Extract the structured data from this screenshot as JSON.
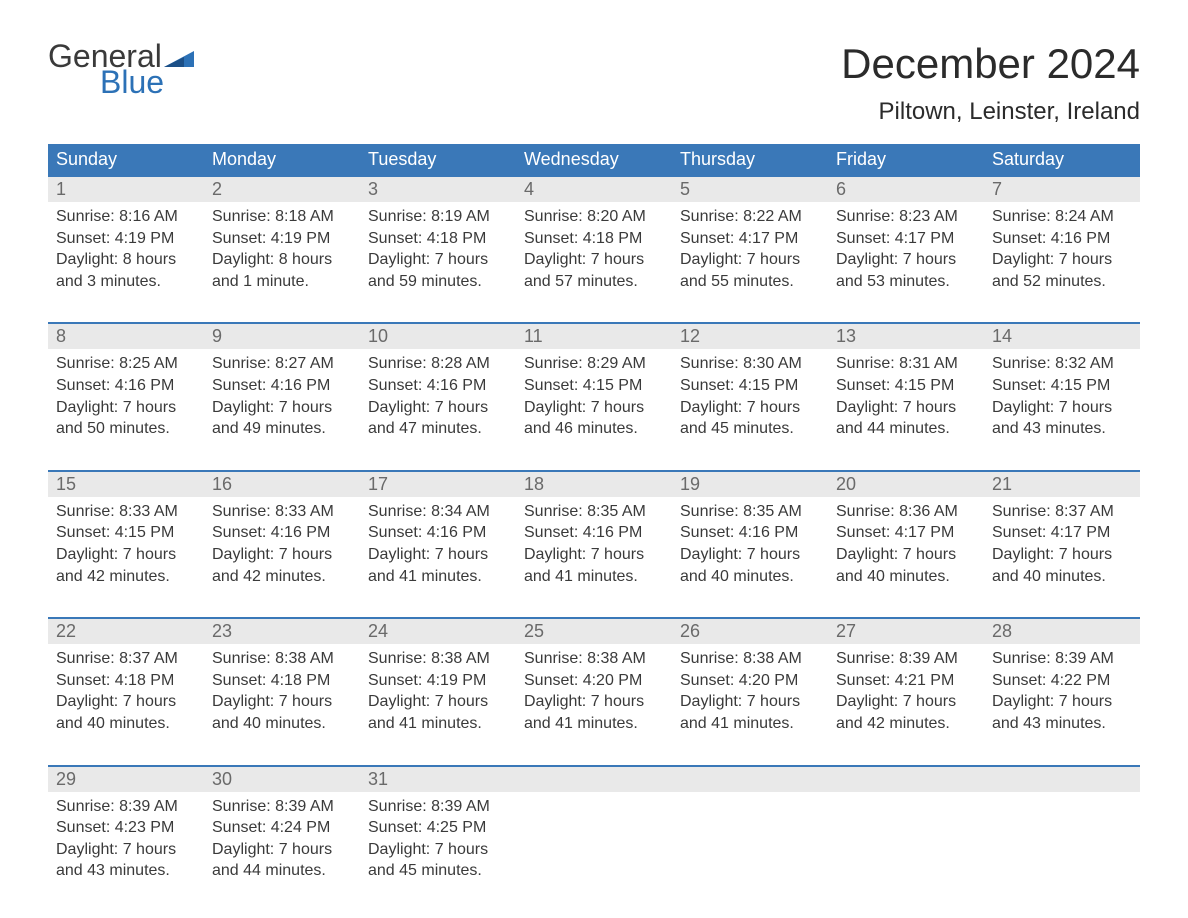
{
  "logo": {
    "line1": "General",
    "line2": "Blue",
    "brand_color": "#2c71b6"
  },
  "title": "December 2024",
  "location": "Piltown, Leinster, Ireland",
  "colors": {
    "header_bg": "#3a78b8",
    "header_text": "#ffffff",
    "week_border": "#3a78b8",
    "daynum_bg": "#e9e9e9",
    "daynum_text": "#6a6a6a",
    "body_text": "#3a3a3a",
    "page_bg": "#ffffff"
  },
  "typography": {
    "title_fontsize": 42,
    "location_fontsize": 24,
    "dow_fontsize": 18,
    "daynum_fontsize": 18,
    "body_fontsize": 16
  },
  "days_of_week": [
    "Sunday",
    "Monday",
    "Tuesday",
    "Wednesday",
    "Thursday",
    "Friday",
    "Saturday"
  ],
  "weeks": [
    [
      {
        "n": "1",
        "sunrise": "Sunrise: 8:16 AM",
        "sunset": "Sunset: 4:19 PM",
        "d1": "Daylight: 8 hours",
        "d2": "and 3 minutes."
      },
      {
        "n": "2",
        "sunrise": "Sunrise: 8:18 AM",
        "sunset": "Sunset: 4:19 PM",
        "d1": "Daylight: 8 hours",
        "d2": "and 1 minute."
      },
      {
        "n": "3",
        "sunrise": "Sunrise: 8:19 AM",
        "sunset": "Sunset: 4:18 PM",
        "d1": "Daylight: 7 hours",
        "d2": "and 59 minutes."
      },
      {
        "n": "4",
        "sunrise": "Sunrise: 8:20 AM",
        "sunset": "Sunset: 4:18 PM",
        "d1": "Daylight: 7 hours",
        "d2": "and 57 minutes."
      },
      {
        "n": "5",
        "sunrise": "Sunrise: 8:22 AM",
        "sunset": "Sunset: 4:17 PM",
        "d1": "Daylight: 7 hours",
        "d2": "and 55 minutes."
      },
      {
        "n": "6",
        "sunrise": "Sunrise: 8:23 AM",
        "sunset": "Sunset: 4:17 PM",
        "d1": "Daylight: 7 hours",
        "d2": "and 53 minutes."
      },
      {
        "n": "7",
        "sunrise": "Sunrise: 8:24 AM",
        "sunset": "Sunset: 4:16 PM",
        "d1": "Daylight: 7 hours",
        "d2": "and 52 minutes."
      }
    ],
    [
      {
        "n": "8",
        "sunrise": "Sunrise: 8:25 AM",
        "sunset": "Sunset: 4:16 PM",
        "d1": "Daylight: 7 hours",
        "d2": "and 50 minutes."
      },
      {
        "n": "9",
        "sunrise": "Sunrise: 8:27 AM",
        "sunset": "Sunset: 4:16 PM",
        "d1": "Daylight: 7 hours",
        "d2": "and 49 minutes."
      },
      {
        "n": "10",
        "sunrise": "Sunrise: 8:28 AM",
        "sunset": "Sunset: 4:16 PM",
        "d1": "Daylight: 7 hours",
        "d2": "and 47 minutes."
      },
      {
        "n": "11",
        "sunrise": "Sunrise: 8:29 AM",
        "sunset": "Sunset: 4:15 PM",
        "d1": "Daylight: 7 hours",
        "d2": "and 46 minutes."
      },
      {
        "n": "12",
        "sunrise": "Sunrise: 8:30 AM",
        "sunset": "Sunset: 4:15 PM",
        "d1": "Daylight: 7 hours",
        "d2": "and 45 minutes."
      },
      {
        "n": "13",
        "sunrise": "Sunrise: 8:31 AM",
        "sunset": "Sunset: 4:15 PM",
        "d1": "Daylight: 7 hours",
        "d2": "and 44 minutes."
      },
      {
        "n": "14",
        "sunrise": "Sunrise: 8:32 AM",
        "sunset": "Sunset: 4:15 PM",
        "d1": "Daylight: 7 hours",
        "d2": "and 43 minutes."
      }
    ],
    [
      {
        "n": "15",
        "sunrise": "Sunrise: 8:33 AM",
        "sunset": "Sunset: 4:15 PM",
        "d1": "Daylight: 7 hours",
        "d2": "and 42 minutes."
      },
      {
        "n": "16",
        "sunrise": "Sunrise: 8:33 AM",
        "sunset": "Sunset: 4:16 PM",
        "d1": "Daylight: 7 hours",
        "d2": "and 42 minutes."
      },
      {
        "n": "17",
        "sunrise": "Sunrise: 8:34 AM",
        "sunset": "Sunset: 4:16 PM",
        "d1": "Daylight: 7 hours",
        "d2": "and 41 minutes."
      },
      {
        "n": "18",
        "sunrise": "Sunrise: 8:35 AM",
        "sunset": "Sunset: 4:16 PM",
        "d1": "Daylight: 7 hours",
        "d2": "and 41 minutes."
      },
      {
        "n": "19",
        "sunrise": "Sunrise: 8:35 AM",
        "sunset": "Sunset: 4:16 PM",
        "d1": "Daylight: 7 hours",
        "d2": "and 40 minutes."
      },
      {
        "n": "20",
        "sunrise": "Sunrise: 8:36 AM",
        "sunset": "Sunset: 4:17 PM",
        "d1": "Daylight: 7 hours",
        "d2": "and 40 minutes."
      },
      {
        "n": "21",
        "sunrise": "Sunrise: 8:37 AM",
        "sunset": "Sunset: 4:17 PM",
        "d1": "Daylight: 7 hours",
        "d2": "and 40 minutes."
      }
    ],
    [
      {
        "n": "22",
        "sunrise": "Sunrise: 8:37 AM",
        "sunset": "Sunset: 4:18 PM",
        "d1": "Daylight: 7 hours",
        "d2": "and 40 minutes."
      },
      {
        "n": "23",
        "sunrise": "Sunrise: 8:38 AM",
        "sunset": "Sunset: 4:18 PM",
        "d1": "Daylight: 7 hours",
        "d2": "and 40 minutes."
      },
      {
        "n": "24",
        "sunrise": "Sunrise: 8:38 AM",
        "sunset": "Sunset: 4:19 PM",
        "d1": "Daylight: 7 hours",
        "d2": "and 41 minutes."
      },
      {
        "n": "25",
        "sunrise": "Sunrise: 8:38 AM",
        "sunset": "Sunset: 4:20 PM",
        "d1": "Daylight: 7 hours",
        "d2": "and 41 minutes."
      },
      {
        "n": "26",
        "sunrise": "Sunrise: 8:38 AM",
        "sunset": "Sunset: 4:20 PM",
        "d1": "Daylight: 7 hours",
        "d2": "and 41 minutes."
      },
      {
        "n": "27",
        "sunrise": "Sunrise: 8:39 AM",
        "sunset": "Sunset: 4:21 PM",
        "d1": "Daylight: 7 hours",
        "d2": "and 42 minutes."
      },
      {
        "n": "28",
        "sunrise": "Sunrise: 8:39 AM",
        "sunset": "Sunset: 4:22 PM",
        "d1": "Daylight: 7 hours",
        "d2": "and 43 minutes."
      }
    ],
    [
      {
        "n": "29",
        "sunrise": "Sunrise: 8:39 AM",
        "sunset": "Sunset: 4:23 PM",
        "d1": "Daylight: 7 hours",
        "d2": "and 43 minutes."
      },
      {
        "n": "30",
        "sunrise": "Sunrise: 8:39 AM",
        "sunset": "Sunset: 4:24 PM",
        "d1": "Daylight: 7 hours",
        "d2": "and 44 minutes."
      },
      {
        "n": "31",
        "sunrise": "Sunrise: 8:39 AM",
        "sunset": "Sunset: 4:25 PM",
        "d1": "Daylight: 7 hours",
        "d2": "and 45 minutes."
      },
      null,
      null,
      null,
      null
    ]
  ]
}
